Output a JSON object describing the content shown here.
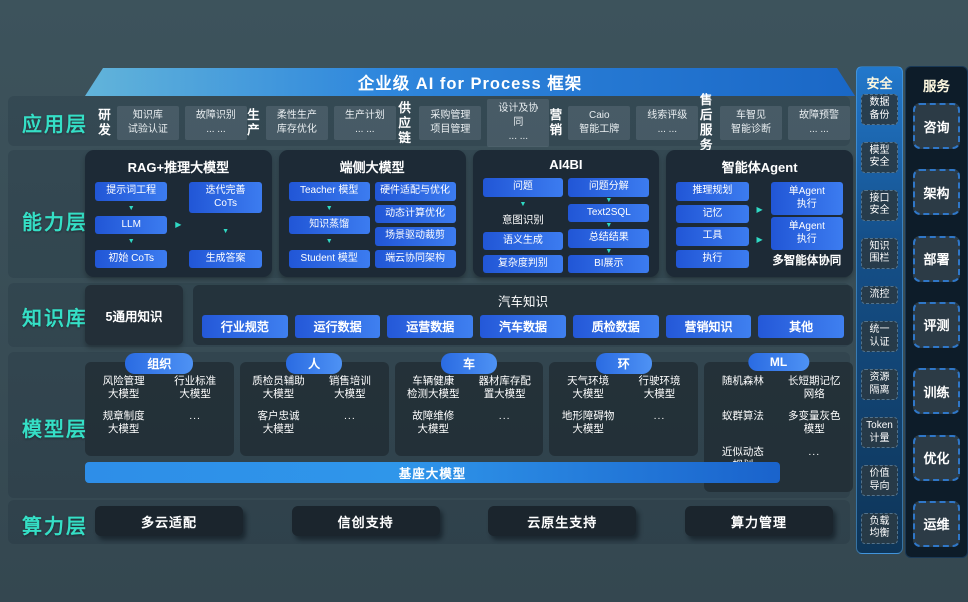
{
  "title": "企业级 AI for Process 框架",
  "icons": {
    "arrow_down": "▼",
    "arrow_right": "▶"
  },
  "colors": {
    "accent_teal": "#35dfc6",
    "pill_blue": "#2e6fe8",
    "card_navy": "#1d2a36",
    "canvas": "#3a4f58",
    "banner_blue": "#2f87dd"
  },
  "layers": {
    "app": {
      "label": "应用层",
      "groups": [
        {
          "label": "研发",
          "boxes": [
            "知识库\n试验认证",
            "故障识别\n... ..."
          ]
        },
        {
          "label": "生产",
          "boxes": [
            "柔性生产\n库存优化",
            "生产计划\n... ..."
          ]
        },
        {
          "label": "供应链",
          "boxes": [
            "采购管理\n项目管理",
            "设计及协同\n... ..."
          ]
        },
        {
          "label": "营销",
          "boxes": [
            "Caio\n智能工牌",
            "线索评级\n... ..."
          ]
        },
        {
          "label": "售后服务",
          "boxes": [
            "车智见\n智能诊断",
            "故障预警\n... ..."
          ]
        }
      ]
    },
    "capability": {
      "label": "能力层",
      "cards": [
        {
          "title": "RAG+推理大模型",
          "connectors": 1,
          "left": [
            {
              "t": "pill",
              "v": "提示词工程"
            },
            {
              "t": "arrow"
            },
            {
              "t": "pill",
              "v": "LLM"
            },
            {
              "t": "arrow"
            },
            {
              "t": "pill",
              "v": "初始 CoTs"
            }
          ],
          "right": [
            {
              "t": "pill",
              "v": "迭代完善\nCoTs"
            },
            {
              "t": "arrow"
            },
            {
              "t": "pill",
              "v": "生成答案"
            }
          ]
        },
        {
          "title": "端侧大模型",
          "connectors": 0,
          "left": [
            {
              "t": "pill",
              "v": "Teacher 模型"
            },
            {
              "t": "arrow"
            },
            {
              "t": "pill",
              "v": "知识蒸馏"
            },
            {
              "t": "arrow"
            },
            {
              "t": "pill",
              "v": "Student 模型"
            }
          ],
          "right": [
            {
              "t": "pill",
              "v": "硬件适配与优化"
            },
            {
              "t": "pill",
              "v": "动态计算优化"
            },
            {
              "t": "pill",
              "v": "场景驱动裁剪"
            },
            {
              "t": "pill",
              "v": "端云协同架构"
            }
          ]
        },
        {
          "title": "AI4BI",
          "connectors": 0,
          "left": [
            {
              "t": "pill",
              "v": "问题"
            },
            {
              "t": "arrow"
            },
            {
              "t": "text",
              "v": "意图识别"
            },
            {
              "t": "pill",
              "v": "语义生成"
            },
            {
              "t": "pill",
              "v": "复杂度判别"
            }
          ],
          "right": [
            {
              "t": "pill",
              "v": "问题分解"
            },
            {
              "t": "arrow"
            },
            {
              "t": "pill",
              "v": "Text2SQL"
            },
            {
              "t": "arrow"
            },
            {
              "t": "pill",
              "v": "总结结果"
            },
            {
              "t": "arrow"
            },
            {
              "t": "pill",
              "v": "BI展示"
            }
          ]
        },
        {
          "title": "智能体Agent",
          "connectors": 2,
          "left": [
            {
              "t": "pill",
              "v": "推理规划"
            },
            {
              "t": "pill",
              "v": "记忆"
            },
            {
              "t": "pill",
              "v": "工具"
            },
            {
              "t": "pill",
              "v": "执行"
            }
          ],
          "right": [
            {
              "t": "big",
              "v": "单Agent\n执行"
            },
            {
              "t": "big",
              "v": "单Agent\n执行"
            },
            {
              "t": "caption",
              "v": "多智能体协同"
            }
          ]
        }
      ]
    },
    "knowledge": {
      "label": "知识库",
      "general": "5通用知识",
      "card_title": "汽车知识",
      "pills": [
        "行业规范",
        "运行数据",
        "运营数据",
        "汽车数据",
        "质检数据",
        "营销知识",
        "其他"
      ]
    },
    "model": {
      "label": "模型层",
      "base_bar": "基座大模型",
      "groups": [
        {
          "tag": "组织",
          "items": [
            "风险管理\n大模型",
            "行业标准\n大模型",
            "规章制度\n大模型",
            "..."
          ]
        },
        {
          "tag": "人",
          "items": [
            "质检员辅助\n大模型",
            "销售培训\n大模型",
            "客户忠诚\n大模型",
            "..."
          ]
        },
        {
          "tag": "车",
          "items": [
            "车辆健康\n检测大模型",
            "器材库存配\n置大模型",
            "故障维修\n大模型",
            "..."
          ]
        },
        {
          "tag": "环",
          "items": [
            "天气环境\n大模型",
            "行驶环境\n大模型",
            "地形障碍物\n大模型",
            "..."
          ]
        },
        {
          "tag": "ML",
          "tall": true,
          "items": [
            "随机森林",
            "长短期记忆\n网络",
            "蚁群算法",
            "多变量灰色\n模型",
            "近似动态\n规划",
            "..."
          ]
        }
      ]
    },
    "compute": {
      "label": "算力层",
      "items": [
        "多云适配",
        "信创支持",
        "云原生支持",
        "算力管理"
      ]
    }
  },
  "security": {
    "title": "安全",
    "items": [
      "数据\n备份",
      "模型\n安全",
      "接口\n安全",
      "知识\n围栏",
      "流控",
      "统一\n认证",
      "资源\n隔离",
      "Token\n计量",
      "价值\n导向",
      "负载\n均衡"
    ]
  },
  "service": {
    "title": "服务",
    "items": [
      "咨询",
      "架构",
      "部署",
      "评测",
      "训练",
      "优化",
      "运维"
    ]
  }
}
